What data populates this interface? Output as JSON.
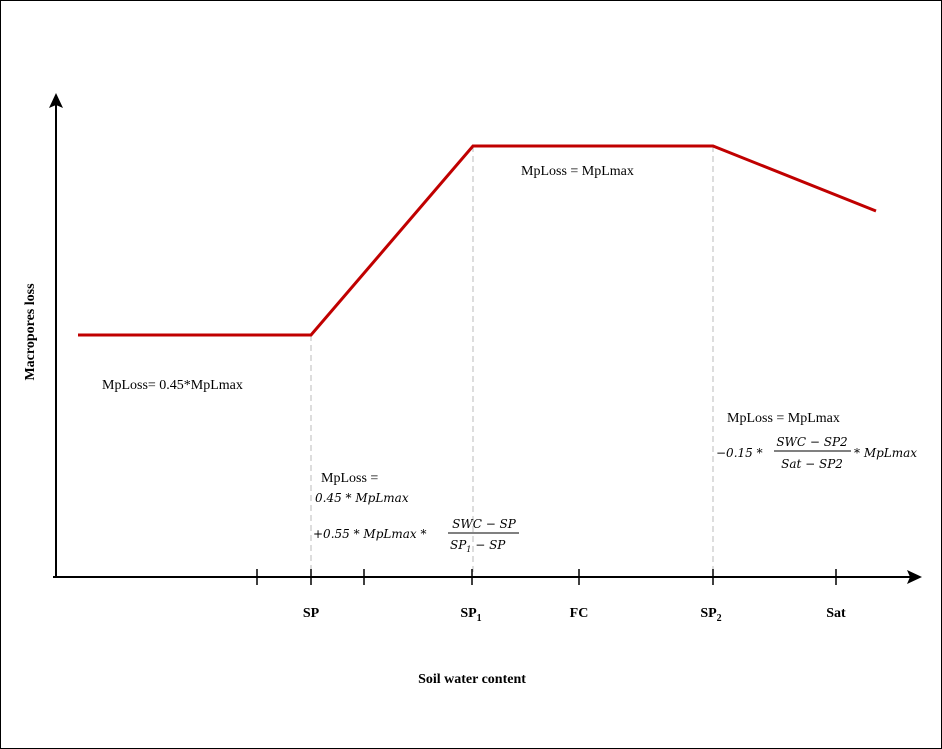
{
  "axes": {
    "x_label": "Soil water content",
    "y_label": "Macropores loss"
  },
  "x_ticks": [
    {
      "key": "sp",
      "label": "SP",
      "sub": ""
    },
    {
      "key": "sp1",
      "label": "SP",
      "sub": "1"
    },
    {
      "key": "fc",
      "label": "FC",
      "sub": ""
    },
    {
      "key": "sp2",
      "label": "SP",
      "sub": "2"
    },
    {
      "key": "sat",
      "label": "Sat",
      "sub": ""
    }
  ],
  "annotations": {
    "low": "MpLoss= 0.45*MpLmax",
    "plateau": "MpLoss = MpLmax",
    "ramp": {
      "title": "MpLoss =",
      "line1": "0.45 * MpLmax",
      "line2_prefix": "+0.55 * MpLmax *",
      "frac_num": "SWC − SP",
      "frac_den_main": "SP",
      "frac_den_sub": "1",
      "frac_den_rest": " − SP"
    },
    "decline": {
      "title": "MpLoss = MpLmax",
      "prefix": "−0.15 *",
      "frac_num": "SWC − SP2",
      "frac_den": "Sat − SP2",
      "suffix": "* MpLmax"
    }
  },
  "colors": {
    "curve": "#c00000",
    "axis": "#000000",
    "guide": "#bbbbbb"
  }
}
